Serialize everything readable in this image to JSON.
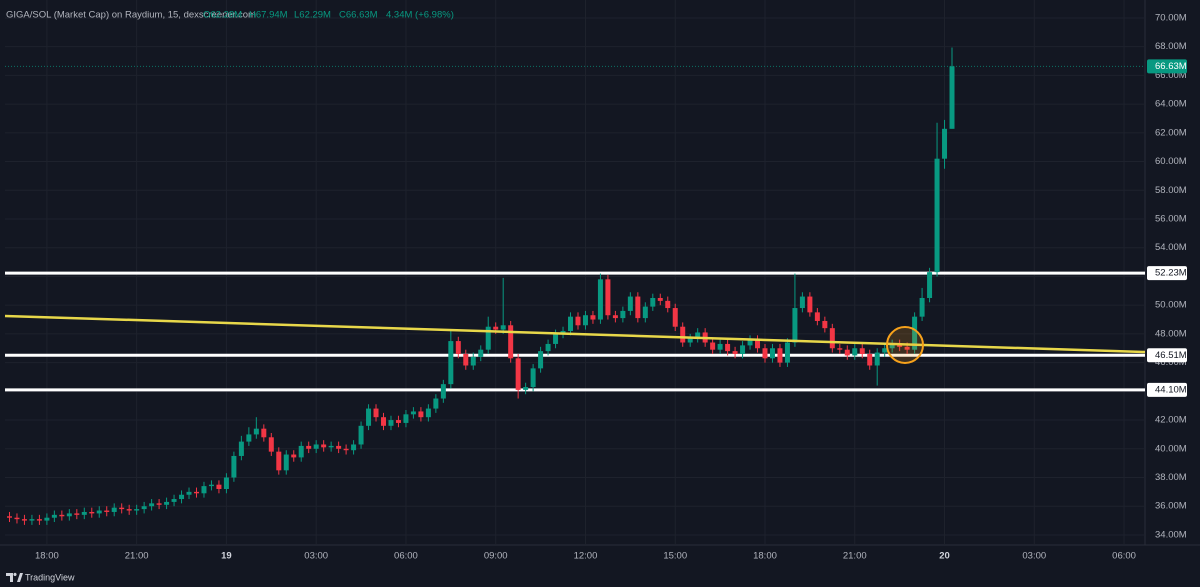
{
  "chart_data": {
    "type": "candlestick",
    "header": {
      "symbol": "GIGA/SOL (Market Cap) on Raydium, 15, dexscreener.com",
      "open": "O62.28M",
      "high": "H67.94M",
      "low": "L62.29M",
      "close": "C66.63M",
      "change": "4.34M (+6.98%)"
    },
    "watermark": "TradingView",
    "up_color": "#089981",
    "down_color": "#f23645",
    "grid": true,
    "xlim": [
      16.6,
      54.7
    ],
    "xticks": [
      {
        "value": 18,
        "label": "18:00"
      },
      {
        "value": 21,
        "label": "21:00"
      },
      {
        "value": 24,
        "label": "19"
      },
      {
        "value": 27,
        "label": "03:00"
      },
      {
        "value": 30,
        "label": "06:00"
      },
      {
        "value": 33,
        "label": "09:00"
      },
      {
        "value": 36,
        "label": "12:00"
      },
      {
        "value": 39,
        "label": "15:00"
      },
      {
        "value": 42,
        "label": "18:00"
      },
      {
        "value": 45,
        "label": "21:00"
      },
      {
        "value": 48,
        "label": "20"
      },
      {
        "value": 51,
        "label": "03:00"
      },
      {
        "value": 54,
        "label": "06:00"
      }
    ],
    "ylim": [
      33.3,
      71.25
    ],
    "yticks": [
      {
        "value": 34,
        "label": "34.00M"
      },
      {
        "value": 36,
        "label": "36.00M"
      },
      {
        "value": 38,
        "label": "38.00M"
      },
      {
        "value": 40,
        "label": "40.00M"
      },
      {
        "value": 42,
        "label": "42.00M"
      },
      {
        "value": 44,
        "label": "44.00M"
      },
      {
        "value": 46,
        "label": "46.00M"
      },
      {
        "value": 48,
        "label": "48.00M"
      },
      {
        "value": 50,
        "label": "50.00M"
      },
      {
        "value": 52,
        "label": "52.00M"
      },
      {
        "value": 54,
        "label": "54.00M"
      },
      {
        "value": 56,
        "label": "56.00M"
      },
      {
        "value": 58,
        "label": "58.00M"
      },
      {
        "value": 60,
        "label": "60.00M"
      },
      {
        "value": 62,
        "label": "62.00M"
      },
      {
        "value": 64,
        "label": "64.00M"
      },
      {
        "value": 66,
        "label": "66.00M"
      },
      {
        "value": 68,
        "label": "68.00M"
      },
      {
        "value": 70,
        "label": "70.00M"
      }
    ],
    "levels": [
      {
        "value": 52.23,
        "label": "52.23M"
      },
      {
        "value": 46.51,
        "label": "46.51M"
      },
      {
        "value": 44.1,
        "label": "44.10M"
      }
    ],
    "trendline": {
      "start": 49.25,
      "end": 46.74,
      "color": "#e8d84a"
    },
    "last_price": {
      "value": 66.63,
      "label": "66.63M"
    },
    "x": [
      16.75,
      17,
      17.25,
      17.5,
      17.75,
      18,
      18.25,
      18.5,
      18.75,
      19,
      19.25,
      19.5,
      19.75,
      20,
      20.25,
      20.5,
      20.75,
      21,
      21.25,
      21.5,
      21.75,
      22,
      22.25,
      22.5,
      22.75,
      23,
      23.25,
      23.5,
      23.75,
      24,
      24.25,
      24.5,
      24.75,
      25,
      25.25,
      25.5,
      25.75,
      26,
      26.25,
      26.5,
      26.75,
      27,
      27.25,
      27.5,
      27.75,
      28,
      28.25,
      28.5,
      28.75,
      29,
      29.25,
      29.5,
      29.75,
      30,
      30.25,
      30.5,
      30.75,
      31,
      31.25,
      31.5,
      31.75,
      32,
      32.25,
      32.5,
      32.75,
      33,
      33.25,
      33.5,
      33.75,
      34,
      34.25,
      34.5,
      34.75,
      35,
      35.25,
      35.5,
      35.75,
      36,
      36.25,
      36.5,
      36.75,
      37,
      37.25,
      37.5,
      37.75,
      38,
      38.25,
      38.5,
      38.75,
      39,
      39.25,
      39.5,
      39.75,
      40,
      40.25,
      40.5,
      40.75,
      41,
      41.25,
      41.5,
      41.75,
      42,
      42.25,
      42.5,
      42.75,
      43,
      43.25,
      43.5,
      43.75,
      44,
      44.25,
      44.5,
      44.75,
      45,
      45.25,
      45.5,
      45.75,
      46,
      46.25,
      46.5,
      46.75,
      47,
      47.25,
      47.5,
      47.75,
      48,
      48.25
    ],
    "open": [
      35.3,
      35.2,
      35.1,
      35.0,
      35.1,
      35.0,
      35.2,
      35.4,
      35.3,
      35.5,
      35.4,
      35.6,
      35.5,
      35.7,
      35.6,
      35.9,
      35.8,
      35.7,
      35.8,
      36.0,
      36.2,
      36.1,
      36.3,
      36.5,
      36.8,
      37.0,
      36.9,
      37.4,
      37.5,
      37.2,
      38.0,
      39.5,
      40.5,
      41.0,
      41.4,
      40.8,
      39.8,
      38.5,
      39.6,
      39.4,
      40.2,
      40.0,
      40.3,
      40.1,
      40.2,
      40.0,
      39.9,
      40.3,
      41.6,
      42.8,
      42.2,
      41.6,
      42.0,
      41.8,
      42.4,
      42.6,
      42.2,
      42.8,
      43.5,
      44.5,
      47.5,
      46.6,
      45.8,
      46.4,
      46.9,
      48.5,
      48.3,
      48.6,
      46.3,
      44.1,
      44.3,
      45.6,
      46.8,
      47.3,
      48.0,
      48.2,
      49.2,
      48.6,
      49.3,
      49.0,
      51.8,
      49.3,
      49.1,
      49.6,
      50.6,
      49.1,
      49.9,
      50.5,
      50.3,
      49.8,
      48.5,
      47.4,
      47.7,
      48.1,
      47.4,
      46.9,
      47.3,
      46.8,
      46.6,
      47.2,
      47.6,
      47.0,
      46.3,
      47.0,
      46.0,
      47.4,
      49.8,
      50.6,
      49.5,
      48.9,
      48.4,
      47.0,
      46.9,
      46.5,
      47.0,
      46.6,
      45.8,
      46.7,
      47.0,
      47.3,
      47.1,
      46.9,
      49.2,
      50.5,
      52.3,
      60.2,
      62.28
    ],
    "high": [
      35.6,
      35.5,
      35.4,
      35.4,
      35.4,
      35.5,
      35.7,
      35.7,
      35.8,
      35.8,
      35.9,
      35.9,
      36.0,
      36.0,
      36.2,
      36.2,
      36.1,
      36.1,
      36.3,
      36.5,
      36.5,
      36.6,
      36.8,
      37.1,
      37.3,
      37.3,
      37.7,
      37.8,
      37.8,
      38.3,
      39.8,
      40.9,
      41.5,
      42.2,
      41.7,
      41.1,
      40.1,
      39.9,
      39.9,
      40.5,
      40.5,
      40.6,
      40.6,
      40.5,
      40.5,
      40.3,
      40.6,
      41.9,
      43.1,
      43.1,
      42.5,
      42.3,
      42.3,
      42.7,
      42.9,
      42.9,
      43.1,
      43.8,
      44.8,
      48.3,
      47.8,
      46.9,
      46.7,
      47.2,
      49.2,
      48.8,
      51.9,
      48.9,
      46.6,
      44.6,
      45.9,
      47.1,
      47.6,
      48.3,
      48.5,
      49.5,
      49.5,
      49.6,
      49.6,
      52.2,
      52.1,
      49.6,
      49.9,
      50.9,
      50.9,
      50.2,
      50.8,
      50.8,
      50.6,
      50.1,
      48.8,
      48.0,
      48.4,
      48.4,
      47.7,
      47.6,
      47.6,
      47.1,
      47.5,
      47.9,
      47.9,
      47.3,
      47.3,
      47.3,
      47.7,
      52.2,
      50.9,
      50.9,
      49.8,
      49.2,
      48.7,
      47.3,
      47.2,
      47.3,
      47.3,
      46.9,
      47.0,
      47.3,
      47.6,
      47.6,
      47.4,
      49.5,
      51.2,
      52.6,
      62.7,
      62.9,
      67.94
    ],
    "low": [
      34.9,
      34.8,
      34.7,
      34.7,
      34.7,
      34.7,
      34.9,
      35.0,
      35.0,
      35.1,
      35.1,
      35.2,
      35.2,
      35.3,
      35.3,
      35.5,
      35.4,
      35.4,
      35.5,
      35.7,
      35.8,
      35.8,
      36.0,
      36.2,
      36.5,
      36.6,
      36.6,
      37.1,
      36.9,
      36.9,
      37.7,
      39.2,
      40.2,
      40.7,
      40.5,
      39.5,
      38.2,
      38.2,
      39.1,
      39.1,
      39.7,
      39.7,
      39.8,
      39.8,
      39.7,
      39.6,
      39.6,
      40.0,
      41.3,
      41.9,
      41.3,
      41.3,
      41.5,
      41.5,
      42.1,
      41.9,
      41.9,
      42.5,
      43.2,
      44.2,
      46.3,
      45.5,
      45.5,
      46.1,
      46.6,
      48.0,
      48.0,
      46.0,
      43.5,
      43.8,
      44.0,
      45.3,
      46.5,
      47.0,
      47.7,
      47.9,
      48.3,
      48.3,
      48.7,
      48.7,
      49.0,
      48.8,
      48.8,
      49.3,
      48.8,
      48.8,
      49.6,
      50.0,
      49.5,
      48.2,
      47.1,
      47.1,
      47.4,
      47.1,
      46.6,
      46.6,
      46.5,
      46.3,
      46.3,
      46.9,
      46.7,
      46.0,
      46.0,
      45.7,
      45.7,
      47.1,
      49.5,
      49.2,
      48.6,
      48.1,
      46.7,
      46.6,
      46.2,
      46.2,
      46.3,
      45.5,
      44.4,
      46.4,
      46.7,
      46.8,
      46.6,
      46.6,
      48.9,
      50.2,
      52.0,
      59.5,
      62.29
    ],
    "close": [
      35.2,
      35.1,
      35.0,
      35.1,
      35.0,
      35.2,
      35.4,
      35.3,
      35.5,
      35.4,
      35.6,
      35.5,
      35.7,
      35.6,
      35.9,
      35.8,
      35.7,
      35.8,
      36.0,
      36.2,
      36.1,
      36.3,
      36.5,
      36.8,
      37.0,
      36.9,
      37.4,
      37.5,
      37.2,
      38.0,
      39.5,
      40.5,
      41.0,
      41.4,
      40.8,
      39.8,
      38.5,
      39.6,
      39.4,
      40.2,
      40.0,
      40.3,
      40.1,
      40.2,
      40.0,
      39.9,
      40.3,
      41.6,
      42.8,
      42.2,
      41.6,
      42.0,
      41.8,
      42.4,
      42.6,
      42.2,
      42.8,
      43.5,
      44.5,
      47.5,
      46.6,
      45.8,
      46.4,
      46.9,
      48.5,
      48.3,
      48.6,
      46.3,
      44.1,
      44.3,
      45.6,
      46.8,
      47.3,
      48.0,
      48.2,
      49.2,
      48.6,
      49.3,
      49.0,
      51.8,
      49.3,
      49.1,
      49.6,
      50.6,
      49.1,
      49.9,
      50.5,
      50.3,
      49.8,
      48.5,
      47.4,
      47.7,
      48.1,
      47.4,
      46.9,
      47.3,
      46.8,
      46.6,
      47.2,
      47.6,
      47.0,
      46.3,
      47.0,
      46.0,
      47.4,
      49.8,
      50.6,
      49.5,
      48.9,
      48.4,
      47.0,
      46.9,
      46.5,
      47.0,
      46.6,
      45.8,
      46.7,
      47.0,
      47.3,
      47.1,
      46.9,
      49.2,
      50.5,
      52.3,
      60.2,
      62.28,
      66.63
    ]
  }
}
